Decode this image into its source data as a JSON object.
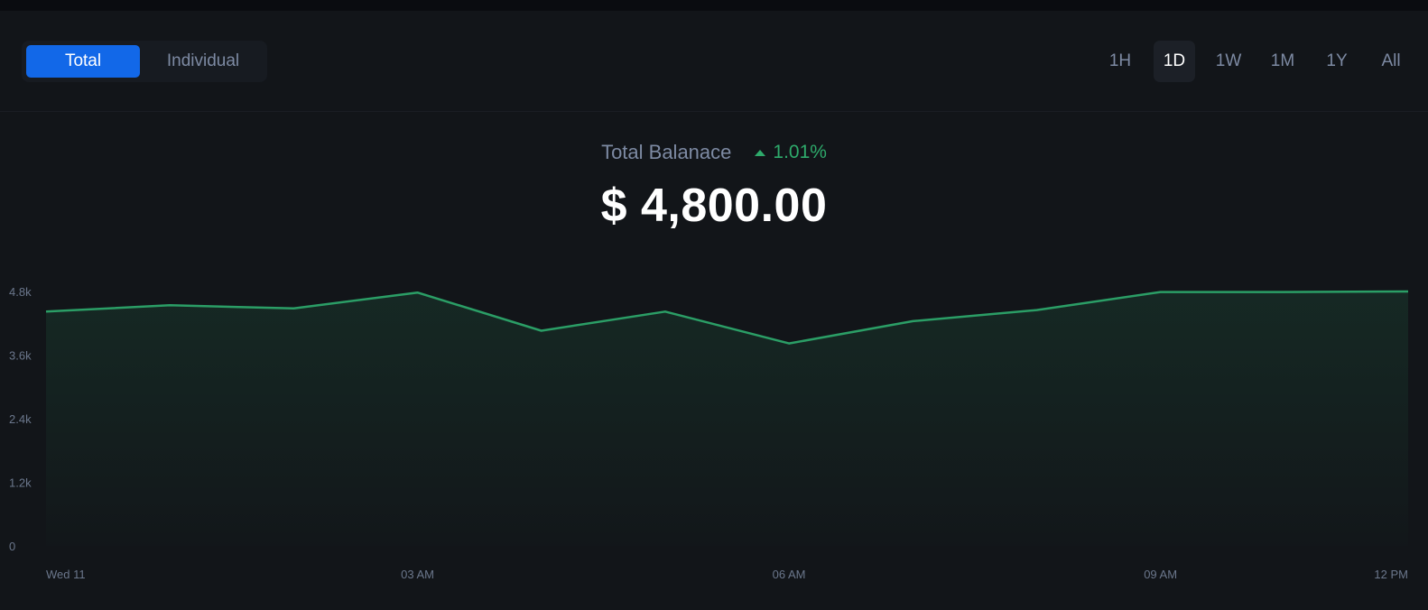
{
  "toggle": {
    "total_label": "Total",
    "individual_label": "Individual",
    "selected": "Total"
  },
  "ranges": {
    "items": [
      "1H",
      "1D",
      "1W",
      "1M",
      "1Y",
      "All"
    ],
    "active": "1D"
  },
  "balance": {
    "label": "Total Balanace",
    "change": "1.01%",
    "amount": "$ 4,800.00"
  },
  "colors": {
    "accent": "#1268e8",
    "positive": "#2eaa6b",
    "line": "#2b9e66",
    "background": "#121519"
  },
  "chart_data": {
    "type": "area",
    "x": [
      0,
      1.5,
      3,
      4.5,
      6,
      7.5,
      9,
      10.5,
      12,
      13.5,
      15,
      16.5
    ],
    "values": [
      4420,
      4540,
      4480,
      4780,
      4060,
      4420,
      3820,
      4240,
      4450,
      4790,
      4790,
      4800
    ],
    "yticks": [
      "4.8k",
      "3.6k",
      "2.4k",
      "1.2k",
      "0"
    ],
    "ytick_values": [
      4800,
      3600,
      2400,
      1200,
      0
    ],
    "ylim": [
      0,
      4800
    ],
    "xticks": [
      "Wed 11",
      "03 AM",
      "06 AM",
      "09 AM",
      "12 PM"
    ],
    "xtick_values": [
      0,
      4.5,
      9,
      13.5,
      16.5
    ],
    "xlim": [
      0,
      16.5
    ],
    "grid": false,
    "legend": "none"
  }
}
